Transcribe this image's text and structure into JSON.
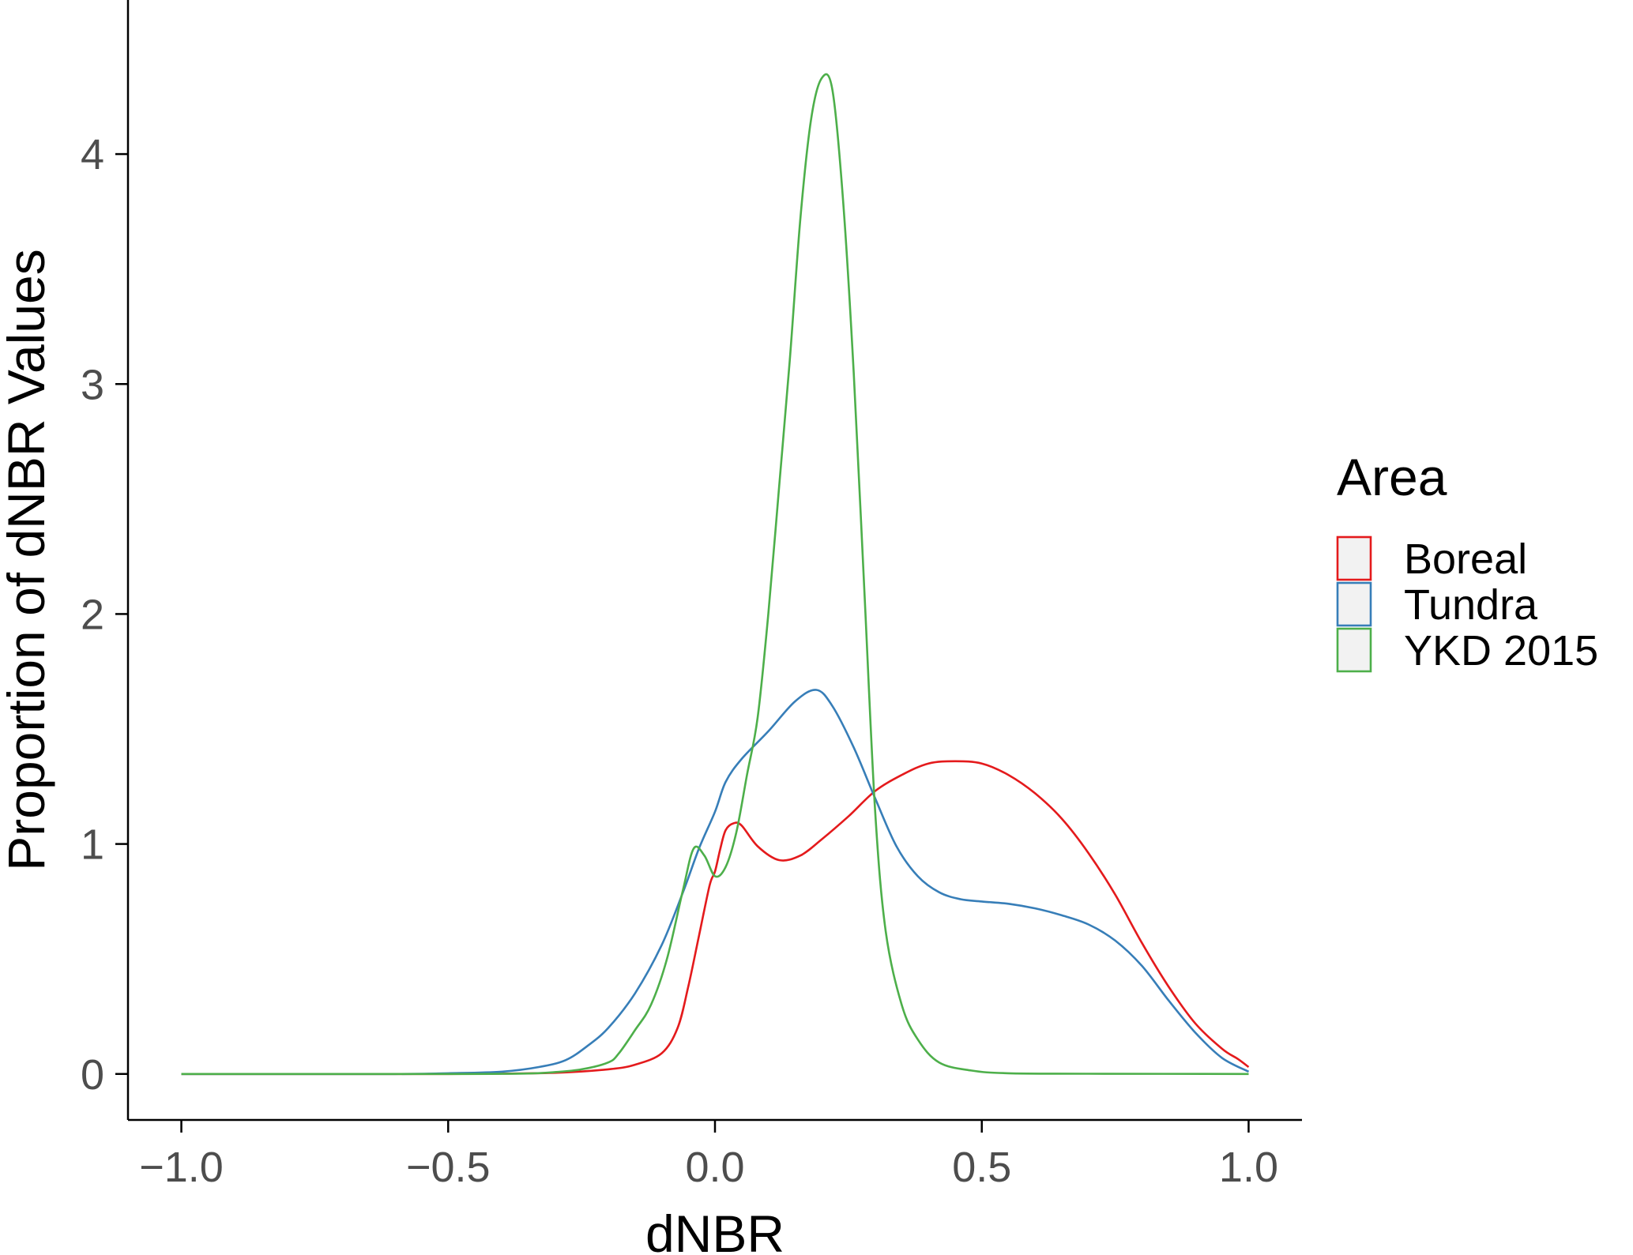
{
  "chart_data": {
    "type": "line",
    "xlabel": "dNBR",
    "ylabel": "Proportion of dNBR Values",
    "xlim": [
      -1.1,
      1.1
    ],
    "ylim": [
      -0.2,
      4.67
    ],
    "x_ticks": [
      -1.0,
      -0.5,
      0.0,
      0.5,
      1.0
    ],
    "x_tick_labels": [
      "−1.0",
      "−0.5",
      "0.0",
      "0.5",
      "1.0"
    ],
    "y_ticks": [
      0,
      1,
      2,
      3,
      4
    ],
    "y_tick_labels": [
      "0",
      "1",
      "2",
      "3",
      "4"
    ],
    "grid": false,
    "legend": {
      "title": "Area",
      "position": "right"
    },
    "series": [
      {
        "name": "Boreal",
        "color": "#e41a1c",
        "points": [
          [
            -1.0,
            0
          ],
          [
            -0.5,
            0
          ],
          [
            -0.3,
            0.005
          ],
          [
            -0.2,
            0.02
          ],
          [
            -0.15,
            0.04
          ],
          [
            -0.1,
            0.09
          ],
          [
            -0.07,
            0.2
          ],
          [
            -0.05,
            0.38
          ],
          [
            -0.03,
            0.6
          ],
          [
            -0.01,
            0.82
          ],
          [
            0.0,
            0.88
          ],
          [
            0.01,
            0.98
          ],
          [
            0.02,
            1.06
          ],
          [
            0.035,
            1.09
          ],
          [
            0.05,
            1.08
          ],
          [
            0.08,
            0.99
          ],
          [
            0.12,
            0.93
          ],
          [
            0.16,
            0.95
          ],
          [
            0.2,
            1.02
          ],
          [
            0.25,
            1.12
          ],
          [
            0.3,
            1.23
          ],
          [
            0.35,
            1.3
          ],
          [
            0.4,
            1.35
          ],
          [
            0.45,
            1.36
          ],
          [
            0.5,
            1.35
          ],
          [
            0.55,
            1.3
          ],
          [
            0.6,
            1.22
          ],
          [
            0.65,
            1.11
          ],
          [
            0.7,
            0.96
          ],
          [
            0.75,
            0.78
          ],
          [
            0.8,
            0.57
          ],
          [
            0.85,
            0.38
          ],
          [
            0.9,
            0.22
          ],
          [
            0.95,
            0.11
          ],
          [
            0.98,
            0.065
          ],
          [
            1.0,
            0.03
          ]
        ]
      },
      {
        "name": "Tundra",
        "color": "#377eb8",
        "points": [
          [
            -1.0,
            0
          ],
          [
            -0.6,
            0
          ],
          [
            -0.5,
            0.003
          ],
          [
            -0.4,
            0.01
          ],
          [
            -0.33,
            0.03
          ],
          [
            -0.28,
            0.06
          ],
          [
            -0.24,
            0.12
          ],
          [
            -0.2,
            0.2
          ],
          [
            -0.15,
            0.35
          ],
          [
            -0.1,
            0.56
          ],
          [
            -0.06,
            0.79
          ],
          [
            -0.03,
            0.98
          ],
          [
            0.0,
            1.14
          ],
          [
            0.02,
            1.27
          ],
          [
            0.05,
            1.37
          ],
          [
            0.1,
            1.49
          ],
          [
            0.15,
            1.62
          ],
          [
            0.19,
            1.67
          ],
          [
            0.22,
            1.6
          ],
          [
            0.26,
            1.42
          ],
          [
            0.3,
            1.2
          ],
          [
            0.34,
            0.99
          ],
          [
            0.38,
            0.86
          ],
          [
            0.42,
            0.79
          ],
          [
            0.46,
            0.76
          ],
          [
            0.5,
            0.75
          ],
          [
            0.55,
            0.74
          ],
          [
            0.6,
            0.72
          ],
          [
            0.65,
            0.69
          ],
          [
            0.7,
            0.65
          ],
          [
            0.75,
            0.58
          ],
          [
            0.8,
            0.47
          ],
          [
            0.85,
            0.32
          ],
          [
            0.9,
            0.18
          ],
          [
            0.95,
            0.07
          ],
          [
            1.0,
            0.01
          ]
        ]
      },
      {
        "name": "YKD 2015",
        "color": "#4daf4a",
        "points": [
          [
            -1.0,
            0
          ],
          [
            -0.5,
            0
          ],
          [
            -0.35,
            0.002
          ],
          [
            -0.3,
            0.008
          ],
          [
            -0.25,
            0.02
          ],
          [
            -0.2,
            0.05
          ],
          [
            -0.18,
            0.09
          ],
          [
            -0.15,
            0.19
          ],
          [
            -0.12,
            0.3
          ],
          [
            -0.09,
            0.5
          ],
          [
            -0.06,
            0.8
          ],
          [
            -0.04,
            0.98
          ],
          [
            -0.02,
            0.95
          ],
          [
            0.0,
            0.86
          ],
          [
            0.02,
            0.9
          ],
          [
            0.04,
            1.05
          ],
          [
            0.06,
            1.3
          ],
          [
            0.08,
            1.55
          ],
          [
            0.1,
            2.0
          ],
          [
            0.12,
            2.55
          ],
          [
            0.14,
            3.1
          ],
          [
            0.16,
            3.72
          ],
          [
            0.18,
            4.15
          ],
          [
            0.2,
            4.33
          ],
          [
            0.22,
            4.28
          ],
          [
            0.24,
            3.8
          ],
          [
            0.26,
            3.05
          ],
          [
            0.28,
            2.1
          ],
          [
            0.3,
            1.15
          ],
          [
            0.32,
            0.62
          ],
          [
            0.35,
            0.3
          ],
          [
            0.38,
            0.15
          ],
          [
            0.42,
            0.05
          ],
          [
            0.48,
            0.015
          ],
          [
            0.55,
            0.003
          ],
          [
            0.7,
            0.001
          ],
          [
            1.0,
            0.0
          ]
        ]
      }
    ]
  }
}
